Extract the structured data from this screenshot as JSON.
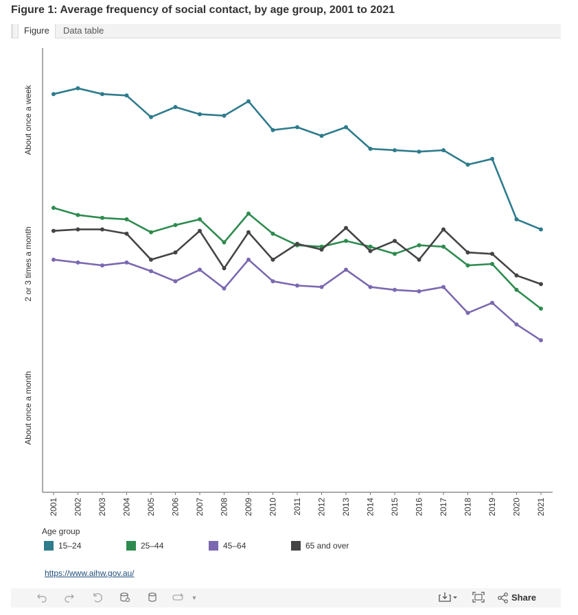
{
  "title": "Figure 1: Average frequency of social contact, by age group, 2001 to 2021",
  "tabs": [
    {
      "label": "Figure",
      "active": true
    },
    {
      "label": "Data table",
      "active": false
    }
  ],
  "legend": {
    "title": "Age group"
  },
  "source_link": "https://www.aihw.gov.au/",
  "toolbar": {
    "share_label": "Share",
    "icons": [
      "undo-icon",
      "redo-icon",
      "revert-icon",
      "refresh-icon",
      "pause-icon",
      "share-view-icon",
      "download-icon",
      "fullscreen-icon",
      "share-icon"
    ]
  },
  "chart_data": {
    "type": "line",
    "title": "Figure 1: Average frequency of social contact, by age group, 2001 to 2021",
    "xlabel": "",
    "ylabel": "",
    "categories": [
      "2001",
      "2002",
      "2003",
      "2004",
      "2005",
      "2006",
      "2007",
      "2008",
      "2009",
      "2010",
      "2011",
      "2012",
      "2013",
      "2014",
      "2015",
      "2016",
      "2017",
      "2018",
      "2019",
      "2020",
      "2021"
    ],
    "y_tick_labels": [
      "About once a month",
      "2 or 3 times a month",
      "About once a week"
    ],
    "y_tick_values": [
      1,
      2,
      3
    ],
    "ylim": [
      0.5,
      3.55
    ],
    "grid": false,
    "legend_position": "bottom-left",
    "series": [
      {
        "name": "15–24",
        "color": "#2e7b8c",
        "values": [
          3.18,
          3.22,
          3.18,
          3.17,
          3.02,
          3.09,
          3.04,
          3.03,
          3.13,
          2.93,
          2.95,
          2.89,
          2.95,
          2.8,
          2.79,
          2.78,
          2.79,
          2.69,
          2.73,
          2.31,
          2.24
        ]
      },
      {
        "name": "25–44",
        "color": "#2e8b4f",
        "values": [
          2.39,
          2.34,
          2.32,
          2.31,
          2.22,
          2.27,
          2.31,
          2.15,
          2.35,
          2.21,
          2.13,
          2.12,
          2.16,
          2.12,
          2.07,
          2.13,
          2.12,
          1.99,
          2.0,
          1.82,
          1.69
        ]
      },
      {
        "name": "45–64",
        "color": "#7b68b0",
        "values": [
          2.03,
          2.01,
          1.99,
          2.01,
          1.95,
          1.88,
          1.96,
          1.83,
          2.03,
          1.88,
          1.85,
          1.84,
          1.96,
          1.84,
          1.82,
          1.81,
          1.84,
          1.66,
          1.73,
          1.58,
          1.47
        ]
      },
      {
        "name": "65 and over",
        "color": "#444444",
        "values": [
          2.23,
          2.24,
          2.24,
          2.21,
          2.03,
          2.08,
          2.23,
          1.97,
          2.22,
          2.03,
          2.14,
          2.1,
          2.25,
          2.09,
          2.16,
          2.03,
          2.24,
          2.08,
          2.07,
          1.92,
          1.86
        ]
      }
    ]
  }
}
